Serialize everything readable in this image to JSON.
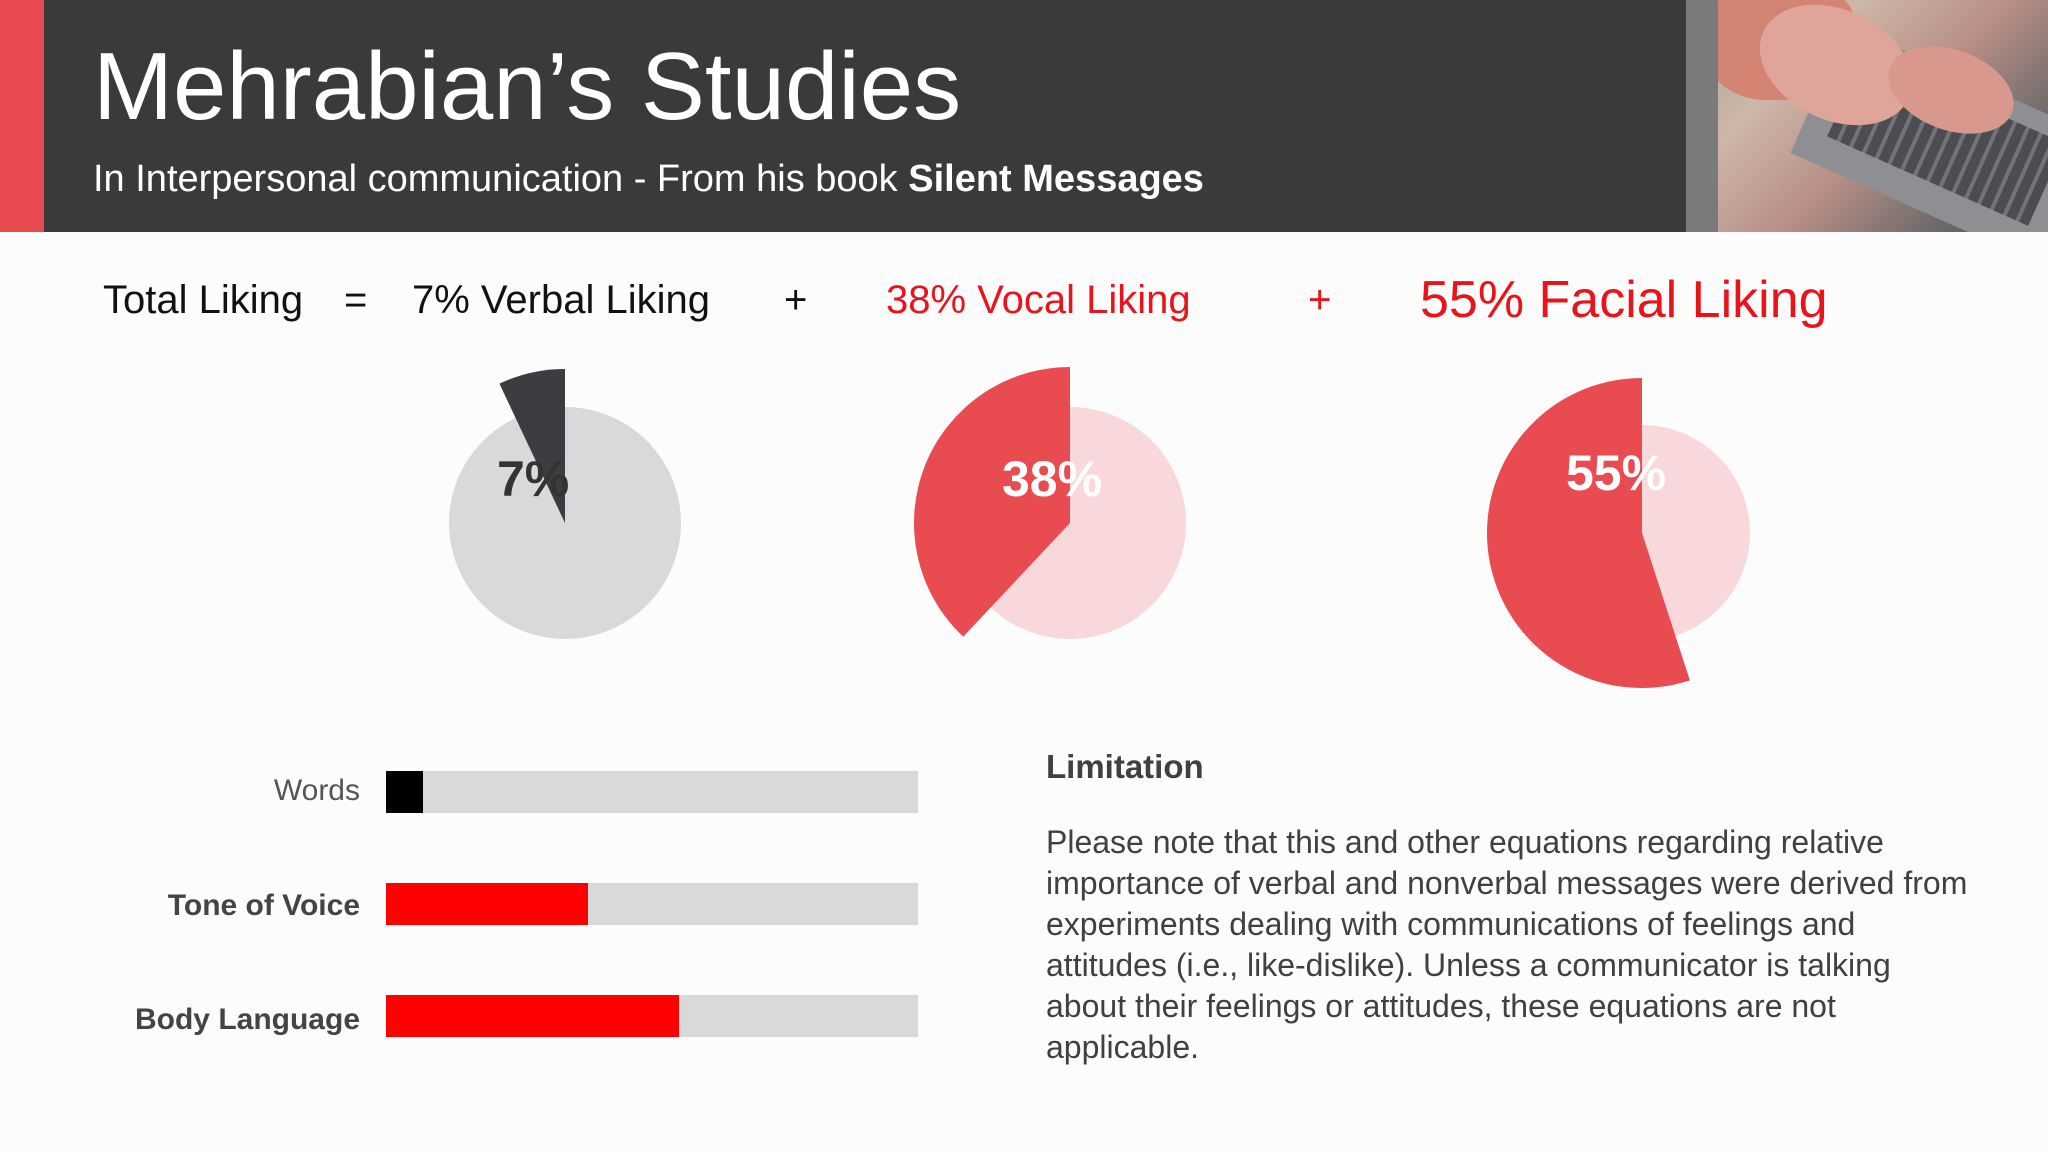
{
  "header": {
    "title": "Mehrabian’s Studies",
    "subtitle_prefix": "In Interpersonal communication - From his book ",
    "subtitle_book": "Silent Messages"
  },
  "equation": {
    "lhs": "Total Liking",
    "equals": "=",
    "term1": "7% Verbal Liking",
    "plus1": "+",
    "term2": "38% Vocal Liking",
    "plus2": "+",
    "term3": "55% Facial Liking"
  },
  "colors": {
    "header_bg": "#3a3a3a",
    "accent": "#e84b50",
    "red": "#ff0000",
    "pie_red": "#e84b50",
    "pie_pink": "#f9d8dc",
    "pie_dark": "#3d3c40",
    "pie_grey": "#d9d8da",
    "track": "#d9d8da"
  },
  "chart_data": [
    {
      "type": "pie",
      "slices": [
        {
          "value": 7,
          "label": "7%",
          "color": "#3d3c40"
        },
        {
          "value": 93,
          "color": "#d9d8da"
        }
      ]
    },
    {
      "type": "pie",
      "slices": [
        {
          "value": 38,
          "label": "38%",
          "color": "#e84b50"
        },
        {
          "value": 62,
          "color": "#f9d8dc"
        }
      ]
    },
    {
      "type": "pie",
      "slices": [
        {
          "value": 55,
          "label": "55%",
          "color": "#e84b50"
        },
        {
          "value": 45,
          "color": "#f9d8dc"
        }
      ]
    },
    {
      "type": "bar",
      "orientation": "horizontal",
      "categories": [
        "Words",
        "Tone of Voice",
        "Body Language"
      ],
      "values": [
        7,
        38,
        55
      ],
      "colors": [
        "#000000",
        "#ff0000",
        "#ff0000"
      ],
      "xlim": [
        0,
        100
      ]
    }
  ],
  "limitation": {
    "title": "Limitation",
    "text": "Please note that this and other equations regarding relative importance of verbal and nonverbal messages were derived from experiments dealing with communications of feelings and attitudes (i.e., like-dislike). Unless a communicator is talking about their feelings or attitudes, these equations are not applicable."
  }
}
